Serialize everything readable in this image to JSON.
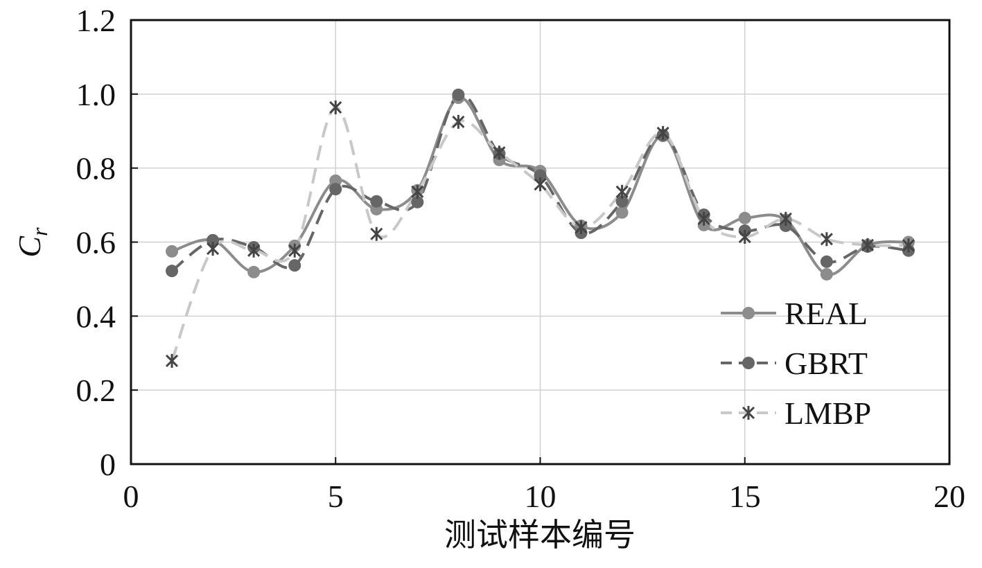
{
  "chart_data": {
    "type": "line",
    "xlabel": "测试样本编号",
    "ylabel": "C",
    "ylabel_subscript": "r",
    "x": [
      1,
      2,
      3,
      4,
      5,
      6,
      7,
      8,
      9,
      10,
      11,
      12,
      13,
      14,
      15,
      16,
      17,
      18,
      19
    ],
    "series": [
      {
        "name": "REAL",
        "color": "#8c8c8c",
        "dash": false,
        "marker": "circle",
        "values": [
          0.575,
          0.605,
          0.519,
          0.59,
          0.766,
          0.689,
          0.74,
          0.99,
          0.822,
          0.792,
          0.644,
          0.68,
          0.887,
          0.646,
          0.665,
          0.66,
          0.513,
          0.592,
          0.6
        ]
      },
      {
        "name": "GBRT",
        "color": "#666666",
        "dash": true,
        "marker": "circle",
        "values": [
          0.522,
          0.605,
          0.586,
          0.537,
          0.743,
          0.71,
          0.708,
          0.998,
          0.839,
          0.78,
          0.625,
          0.71,
          0.889,
          0.674,
          0.631,
          0.644,
          0.547,
          0.588,
          0.577
        ]
      },
      {
        "name": "LMBP",
        "color": "#c8c8c8",
        "dash": true,
        "marker": "star",
        "values": [
          0.279,
          0.582,
          0.577,
          0.577,
          0.964,
          0.622,
          0.736,
          0.925,
          0.842,
          0.756,
          0.64,
          0.736,
          0.895,
          0.663,
          0.614,
          0.663,
          0.608,
          0.592,
          0.591
        ]
      }
    ],
    "xlim": [
      0,
      20
    ],
    "xticks": [
      0,
      5,
      10,
      15,
      20
    ],
    "ylim": [
      0,
      1.2
    ],
    "yticks": [
      0,
      0.2,
      0.4,
      0.6,
      0.8,
      {
        "value": 1,
        "label": "1.0"
      },
      1.2
    ],
    "grid": true,
    "legend": "lower right"
  }
}
